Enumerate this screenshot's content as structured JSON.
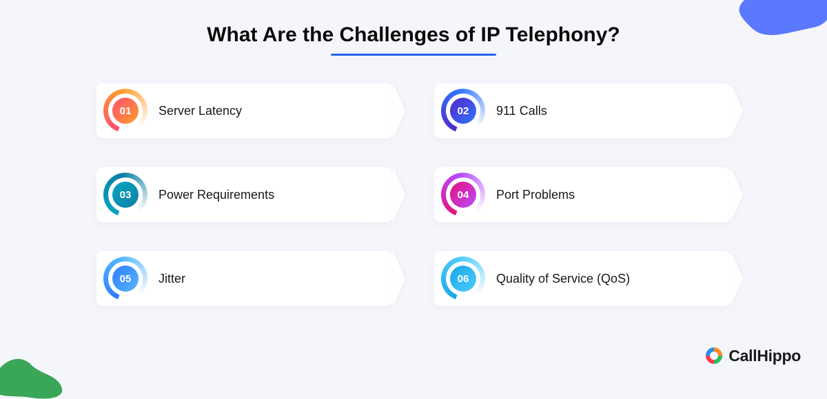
{
  "title": "What Are the Challenges of IP Telephony?",
  "underline_color": "#2563eb",
  "background_color": "#f4f6fc",
  "card_bg": "#ffffff",
  "items": [
    {
      "num": "01",
      "label": "Server Latency",
      "grad_from": "#ff4d6d",
      "grad_to": "#ff9e2c"
    },
    {
      "num": "02",
      "label": "911 Calls",
      "grad_from": "#5227c9",
      "grad_to": "#3076ff"
    },
    {
      "num": "03",
      "label": "Power Requirements",
      "grad_from": "#0aa6c2",
      "grad_to": "#0a7fa3"
    },
    {
      "num": "04",
      "label": "Port Problems",
      "grad_from": "#e6117a",
      "grad_to": "#b84bff"
    },
    {
      "num": "05",
      "label": "Jitter",
      "grad_from": "#2f7bff",
      "grad_to": "#55b8ff"
    },
    {
      "num": "06",
      "label": "Quality of Service (QoS)",
      "grad_from": "#17a8e6",
      "grad_to": "#4ecbff"
    }
  ],
  "corner_tr_color": "#3f63ff",
  "corner_bl_color": "#3aa657",
  "logo": {
    "text": "CallHippo",
    "colors": {
      "blue": "#2b8de8",
      "orange": "#ff8a1f",
      "green": "#2bbf5a",
      "red": "#ff3b4d"
    }
  }
}
